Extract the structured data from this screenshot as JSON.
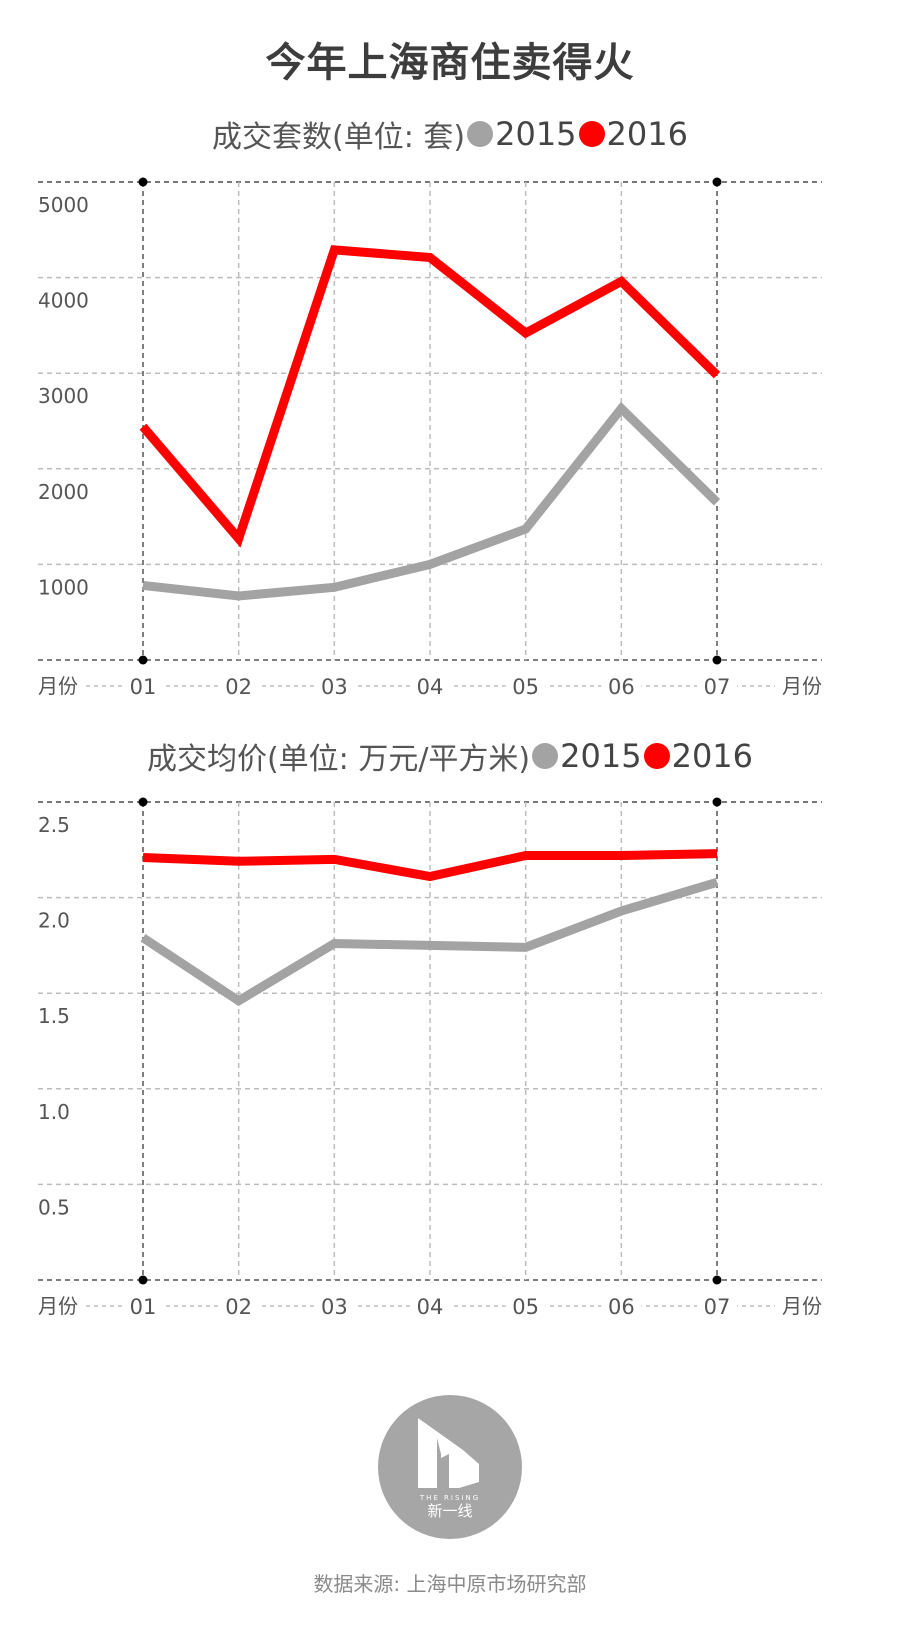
{
  "title": "今年上海商住卖得火",
  "source": "数据来源: 上海中原市场研究部",
  "logo": {
    "icon": "the-rising-logo",
    "caption_en": "THE RISING",
    "caption_cn": "新一线"
  },
  "colors": {
    "series_2015": "#a3a3a3",
    "series_2016": "#ff0000",
    "grid": "#bdbdbd",
    "axis": "#555555",
    "logo_bg": "#a6a6a6"
  },
  "chart_data": [
    {
      "type": "line",
      "title": "成交套数(单位: 套)",
      "x": [
        "01",
        "02",
        "03",
        "04",
        "05",
        "06",
        "07"
      ],
      "xlabel_left": "月份",
      "xlabel_right": "月份",
      "ylim": [
        0,
        5000
      ],
      "yticks": [
        1000,
        2000,
        3000,
        4000,
        5000
      ],
      "grid": true,
      "legend": "top-center",
      "series": [
        {
          "name": "2015",
          "values": [
            780,
            670,
            760,
            1000,
            1370,
            2630,
            1650
          ]
        },
        {
          "name": "2016",
          "values": [
            2440,
            1270,
            4290,
            4210,
            3420,
            3960,
            2980
          ]
        }
      ]
    },
    {
      "type": "line",
      "title": "成交均价(单位: 万元/平方米)",
      "x": [
        "01",
        "02",
        "03",
        "04",
        "05",
        "06",
        "07"
      ],
      "xlabel_left": "月份",
      "xlabel_right": "月份",
      "ylim": [
        0,
        2.5
      ],
      "yticks": [
        "0.5",
        "1.0",
        "1.5",
        "2.0",
        "2.5"
      ],
      "grid": true,
      "legend": "top-center",
      "series": [
        {
          "name": "2015",
          "values": [
            1.79,
            1.46,
            1.76,
            1.75,
            1.74,
            1.93,
            2.08
          ]
        },
        {
          "name": "2016",
          "values": [
            2.21,
            2.19,
            2.2,
            2.11,
            2.22,
            2.22,
            2.23
          ]
        }
      ]
    }
  ]
}
